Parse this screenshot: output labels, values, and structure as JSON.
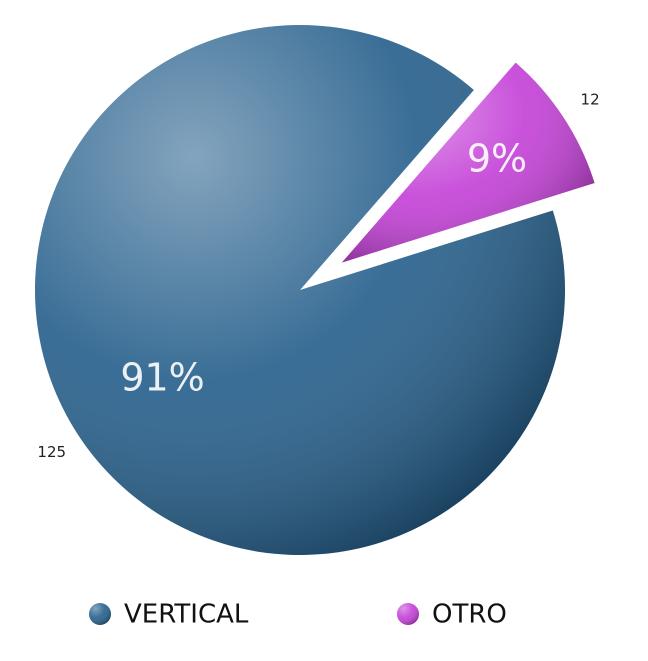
{
  "chart_data": {
    "type": "pie",
    "categories": [
      "VERTICAL",
      "OTRO"
    ],
    "values": [
      125,
      12
    ],
    "value_labels": [
      "91%",
      "9%"
    ],
    "colors": [
      "#1f5a88",
      "#c23ad6"
    ]
  }
}
